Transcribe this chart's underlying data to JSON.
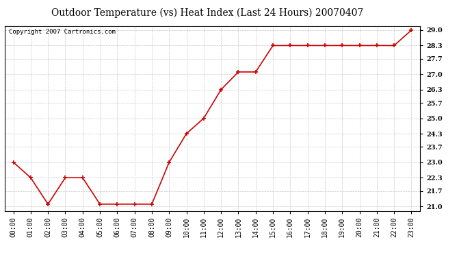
{
  "title": "Outdoor Temperature (vs) Heat Index (Last 24 Hours) 20070407",
  "copyright_text": "Copyright 2007 Cartronics.com",
  "x_labels": [
    "00:00",
    "01:00",
    "02:00",
    "03:00",
    "04:00",
    "05:00",
    "06:00",
    "07:00",
    "08:00",
    "09:00",
    "10:00",
    "11:00",
    "12:00",
    "13:00",
    "14:00",
    "15:00",
    "16:00",
    "17:00",
    "18:00",
    "19:00",
    "20:00",
    "21:00",
    "22:00",
    "23:00"
  ],
  "y_values": [
    23.0,
    22.3,
    21.1,
    22.3,
    22.3,
    21.1,
    21.1,
    21.1,
    21.1,
    23.0,
    24.3,
    25.0,
    26.3,
    27.1,
    27.1,
    28.3,
    28.3,
    28.3,
    28.3,
    28.3,
    28.3,
    28.3,
    28.3,
    29.0
  ],
  "y_ticks": [
    21.0,
    21.7,
    22.3,
    23.0,
    23.7,
    24.3,
    25.0,
    25.7,
    26.3,
    27.0,
    27.7,
    28.3,
    29.0
  ],
  "ylim": [
    20.8,
    29.2
  ],
  "line_color": "#cc0000",
  "marker": "+",
  "marker_size": 4,
  "background_color": "#ffffff",
  "grid_color": "#bbbbbb",
  "title_fontsize": 10,
  "tick_fontsize": 7,
  "copyright_fontsize": 6.5
}
